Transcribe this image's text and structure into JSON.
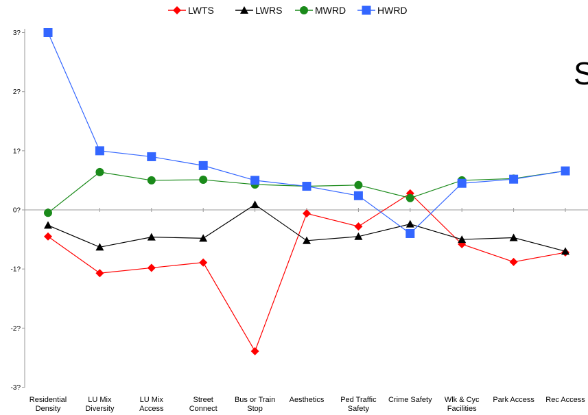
{
  "chart_data": {
    "type": "line",
    "categories": [
      [
        "Residential",
        "Density"
      ],
      [
        "LU Mix",
        "Diversity"
      ],
      [
        "LU Mix",
        "Access"
      ],
      [
        "Street",
        "Connect"
      ],
      [
        "Bus or Train",
        "Stop"
      ],
      [
        "Aesthetics"
      ],
      [
        "Ped Traffic",
        "Safety"
      ],
      [
        "Crime Safety"
      ],
      [
        "Wlk & Cyc",
        "Facilities"
      ],
      [
        "Park Access"
      ],
      [
        "Rec Access"
      ]
    ],
    "y_ticks": [
      "3?",
      "2?",
      "1?",
      "0?",
      "-1?",
      "-2?",
      "-3?"
    ],
    "ylim": [
      -3,
      3
    ],
    "grid": false,
    "legend_position": "top-center",
    "overlay_text": "S",
    "series": [
      {
        "name": "LWTS",
        "color": "#ff0000",
        "marker": "diamond",
        "values": [
          -0.45,
          -1.07,
          -0.98,
          -0.89,
          -2.39,
          -0.06,
          -0.28,
          0.28,
          -0.58,
          -0.88,
          -0.72
        ]
      },
      {
        "name": "LWRS",
        "color": "#000000",
        "marker": "triangle",
        "values": [
          -0.26,
          -0.63,
          -0.46,
          -0.48,
          0.09,
          -0.52,
          -0.45,
          -0.24,
          -0.5,
          -0.47,
          -0.7
        ]
      },
      {
        "name": "MWRD",
        "color": "#1a8a1a",
        "marker": "circle",
        "values": [
          -0.05,
          0.64,
          0.5,
          0.51,
          0.43,
          0.4,
          0.42,
          0.2,
          0.5,
          0.53,
          0.66
        ]
      },
      {
        "name": "HWRD",
        "color": "#3366ff",
        "marker": "square",
        "values": [
          3.0,
          1.0,
          0.9,
          0.75,
          0.5,
          0.4,
          0.24,
          -0.4,
          0.45,
          0.52,
          0.66
        ]
      }
    ]
  }
}
